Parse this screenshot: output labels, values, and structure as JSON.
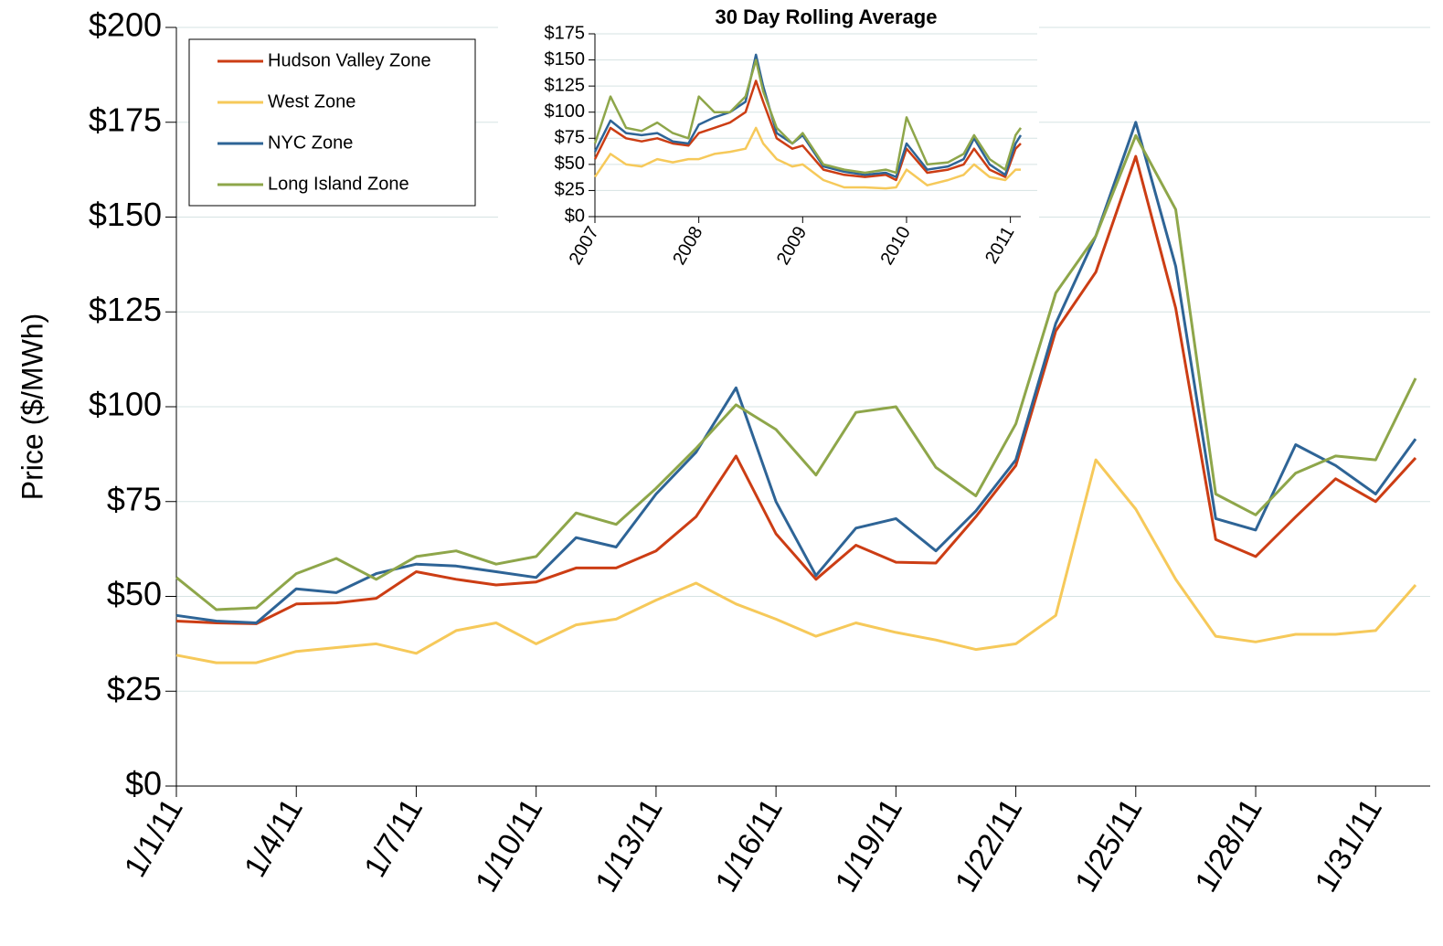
{
  "chart_data": [
    {
      "type": "line",
      "y_label": "Price ($/MWh)",
      "categories": [
        "1/1/11",
        null,
        null,
        "1/4/11",
        null,
        null,
        "1/7/11",
        null,
        null,
        "1/10/11",
        null,
        null,
        "1/13/11",
        null,
        null,
        "1/16/11",
        null,
        null,
        "1/19/11",
        null,
        null,
        "1/22/11",
        null,
        null,
        "1/25/11",
        null,
        null,
        "1/28/11",
        null,
        null,
        "1/31/11",
        null
      ],
      "series": [
        {
          "name": "Hudson Valley Zone",
          "color": "#cc3d14",
          "values": [
            43.5,
            43,
            42.8,
            48,
            48.3,
            49.5,
            56.5,
            54.5,
            53,
            53.8,
            57.5,
            57.5,
            62,
            71,
            87,
            66.5,
            54.5,
            63.5,
            59,
            58.8,
            71,
            84.5,
            120,
            135.5,
            166,
            126,
            65,
            60.5,
            71,
            81,
            75,
            86.5
          ]
        },
        {
          "name": "West Zone",
          "color": "#f6c95a",
          "values": [
            34.5,
            32.5,
            32.5,
            35.5,
            36.5,
            37.5,
            35,
            41,
            43,
            37.5,
            42.5,
            44,
            49,
            53.5,
            48,
            44,
            39.5,
            43,
            40.5,
            38.5,
            36,
            37.5,
            45,
            86,
            73,
            54.5,
            39.5,
            38,
            40,
            40,
            41,
            53
          ]
        },
        {
          "name": "NYC Zone",
          "color": "#2e6496",
          "values": [
            45,
            43.5,
            43,
            52,
            51,
            56,
            58.5,
            58,
            56.5,
            55,
            65.5,
            63,
            77,
            88,
            105,
            75,
            55.5,
            68,
            70.5,
            62,
            72.5,
            86,
            122,
            145,
            175,
            137,
            70.5,
            67.5,
            90,
            84.5,
            77,
            91.5
          ]
        },
        {
          "name": "Long Island Zone",
          "color": "#8ea64a",
          "values": [
            55,
            46.5,
            47,
            56,
            60,
            54.5,
            60.5,
            62,
            58.5,
            60.5,
            72,
            69,
            78.5,
            89,
            100.5,
            94,
            82,
            98.5,
            100,
            84,
            76.5,
            95.5,
            130,
            145,
            171.5,
            152,
            77,
            71.5,
            82.5,
            87,
            86,
            107.5
          ]
        }
      ],
      "ylim": [
        0,
        200
      ],
      "yticks": [
        {
          "value": 0,
          "label": "$0"
        },
        {
          "value": 25,
          "label": "$25"
        },
        {
          "value": 50,
          "label": "$50"
        },
        {
          "value": 75,
          "label": "$75"
        },
        {
          "value": 100,
          "label": "$100"
        },
        {
          "value": 125,
          "label": "$125"
        },
        {
          "value": 150,
          "label": "$150"
        },
        {
          "value": 175,
          "label": "$175"
        },
        {
          "value": 200,
          "label": "$200"
        }
      ],
      "grid": true,
      "legend": "upper left"
    },
    {
      "type": "line",
      "title": "30 Day Rolling Average",
      "x": [
        2007.0,
        2007.15,
        2007.3,
        2007.45,
        2007.6,
        2007.75,
        2007.9,
        2008.0,
        2008.15,
        2008.3,
        2008.45,
        2008.55,
        2008.62,
        2008.75,
        2008.9,
        2009.0,
        2009.2,
        2009.4,
        2009.6,
        2009.8,
        2009.9,
        2010.0,
        2010.2,
        2010.4,
        2010.55,
        2010.65,
        2010.8,
        2010.95,
        2011.05,
        2011.1
      ],
      "series": [
        {
          "color": "#cc3d14",
          "values": [
            55,
            85,
            75,
            72,
            75,
            70,
            68,
            80,
            85,
            90,
            100,
            130,
            110,
            75,
            65,
            68,
            45,
            40,
            38,
            40,
            35,
            65,
            42,
            45,
            50,
            65,
            45,
            38,
            65,
            70
          ]
        },
        {
          "color": "#f6c95a",
          "values": [
            38,
            60,
            50,
            48,
            55,
            52,
            55,
            55,
            60,
            62,
            65,
            85,
            70,
            55,
            48,
            50,
            35,
            28,
            28,
            27,
            28,
            45,
            30,
            35,
            40,
            50,
            38,
            35,
            45,
            45
          ]
        },
        {
          "color": "#2e6496",
          "values": [
            62,
            92,
            80,
            78,
            80,
            72,
            70,
            88,
            95,
            100,
            110,
            155,
            125,
            80,
            70,
            78,
            48,
            43,
            40,
            42,
            38,
            70,
            45,
            48,
            55,
            75,
            50,
            40,
            70,
            78
          ]
        },
        {
          "color": "#8ea64a",
          "values": [
            70,
            115,
            85,
            82,
            90,
            80,
            75,
            115,
            100,
            100,
            115,
            150,
            120,
            85,
            70,
            80,
            50,
            45,
            42,
            45,
            42,
            95,
            50,
            52,
            60,
            78,
            55,
            45,
            78,
            85
          ]
        }
      ],
      "xlim": [
        2007,
        2011.1
      ],
      "xticks": [
        2007,
        2008,
        2009,
        2010,
        2011
      ],
      "ylim": [
        0,
        175
      ],
      "yticks": [
        {
          "value": 0,
          "label": "$0"
        },
        {
          "value": 25,
          "label": "$25"
        },
        {
          "value": 50,
          "label": "$50"
        },
        {
          "value": 75,
          "label": "$75"
        },
        {
          "value": 100,
          "label": "$100"
        },
        {
          "value": 125,
          "label": "$125"
        },
        {
          "value": 150,
          "label": "$150"
        },
        {
          "value": 175,
          "label": "$175"
        }
      ],
      "grid": true
    }
  ]
}
